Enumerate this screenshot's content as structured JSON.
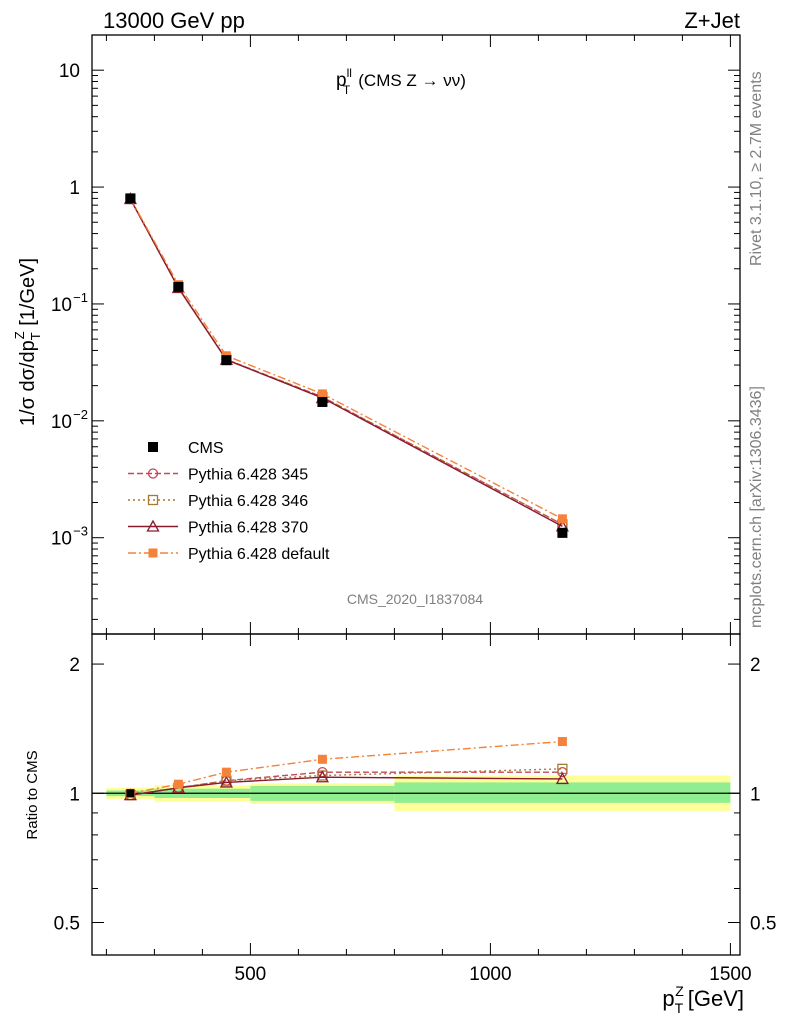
{
  "header": {
    "left": "13000 GeV pp",
    "right": "Z+Jet"
  },
  "plot_title": {
    "prefix": "p",
    "sup": "ll",
    "sub": "T",
    "rest": "(CMS Z → νν)"
  },
  "side_labels": {
    "rivet": "Rivet 3.1.10, ≥ 2.7M events",
    "mcplots": "mcplots.cern.ch [arXiv:1306.3436]"
  },
  "watermark": "CMS_2020_I1837084",
  "axes": {
    "main_ylabel": "1/σ dσ/dp_T^Z [1/GeV]",
    "ratio_ylabel": "Ratio to CMS",
    "xlabel": "p_T^Z [GeV]"
  },
  "legend": [
    {
      "label": "CMS",
      "color": "#000000",
      "marker": "filled-square",
      "line": "none"
    },
    {
      "label": "Pythia 6.428 345",
      "color": "#c8455b",
      "marker": "open-circle",
      "line": "dashed"
    },
    {
      "label": "Pythia 6.428 346",
      "color": "#a87932",
      "marker": "open-square",
      "line": "dotted"
    },
    {
      "label": "Pythia 6.428 370",
      "color": "#8b1a2f",
      "marker": "open-triangle",
      "line": "solid"
    },
    {
      "label": "Pythia 6.428 default",
      "color": "#f4823a",
      "marker": "filled-square",
      "line": "dashdot"
    }
  ],
  "chart_data": {
    "type": "scatter",
    "xlim": [
      170,
      1520
    ],
    "x_ticks": [
      500,
      1000,
      1500
    ],
    "main_panel": {
      "yscale": "log",
      "ylim": [
        0.00015,
        20
      ],
      "y_ticks": [
        {
          "value": 10,
          "label": "10"
        },
        {
          "value": 1,
          "label": "1"
        },
        {
          "value": 0.1,
          "label": "10",
          "exp": "−1"
        },
        {
          "value": 0.01,
          "label": "10",
          "exp": "−2"
        },
        {
          "value": 0.001,
          "label": "10",
          "exp": "−3"
        }
      ],
      "x": [
        250,
        350,
        450,
        650,
        1150
      ],
      "series": [
        {
          "name": "CMS",
          "values": [
            0.8,
            0.14,
            0.033,
            0.0145,
            0.0011
          ]
        },
        {
          "name": "Pythia 6.428 345",
          "values": [
            0.79,
            0.138,
            0.0335,
            0.016,
            0.0013
          ]
        },
        {
          "name": "Pythia 6.428 346",
          "values": [
            0.79,
            0.138,
            0.0335,
            0.016,
            0.0013
          ]
        },
        {
          "name": "Pythia 6.428 370",
          "values": [
            0.79,
            0.137,
            0.0333,
            0.0157,
            0.00125
          ]
        },
        {
          "name": "Pythia 6.428 default",
          "values": [
            0.8,
            0.146,
            0.036,
            0.017,
            0.00145
          ]
        }
      ]
    },
    "ratio_panel": {
      "yscale": "log",
      "ylim": [
        0.42,
        2.35
      ],
      "y_ticks": [
        {
          "value": 2,
          "label": "2"
        },
        {
          "value": 1,
          "label": "1"
        },
        {
          "value": 0.5,
          "label": "0.5"
        }
      ],
      "x": [
        250,
        350,
        450,
        650,
        1150
      ],
      "bands": [
        {
          "x0": 200,
          "x1": 300,
          "inner": [
            0.985,
            1.015
          ],
          "outer": [
            0.97,
            1.03
          ]
        },
        {
          "x0": 300,
          "x1": 500,
          "inner": [
            0.975,
            1.025
          ],
          "outer": [
            0.955,
            1.045
          ]
        },
        {
          "x0": 500,
          "x1": 800,
          "inner": [
            0.96,
            1.04
          ],
          "outer": [
            0.945,
            1.055
          ]
        },
        {
          "x0": 800,
          "x1": 1500,
          "inner": [
            0.95,
            1.06
          ],
          "outer": [
            0.91,
            1.1
          ]
        }
      ],
      "series": [
        {
          "name": "Pythia 6.428 345",
          "values": [
            0.99,
            1.03,
            1.07,
            1.12,
            1.12
          ]
        },
        {
          "name": "Pythia 6.428 346",
          "values": [
            0.99,
            1.03,
            1.07,
            1.1,
            1.14
          ]
        },
        {
          "name": "Pythia 6.428 370",
          "values": [
            0.99,
            1.03,
            1.06,
            1.09,
            1.08
          ]
        },
        {
          "name": "Pythia 6.428 default",
          "values": [
            1.0,
            1.05,
            1.12,
            1.2,
            1.32
          ]
        }
      ]
    }
  }
}
